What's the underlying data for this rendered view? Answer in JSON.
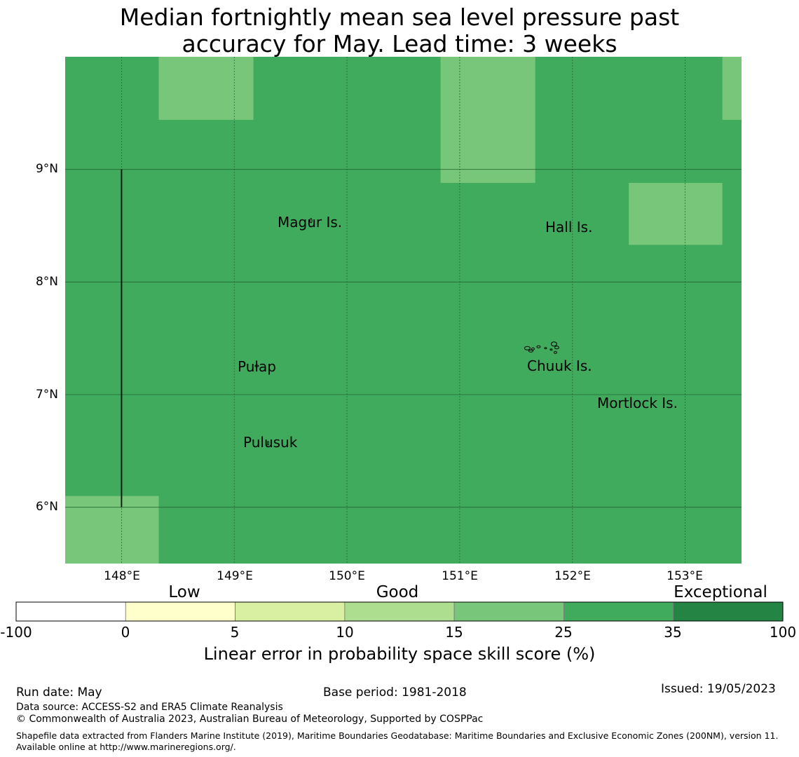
{
  "title_line1": "Median fortnightly mean sea level pressure past",
  "title_line2": "accuracy for May. Lead time: 3 weeks",
  "map": {
    "lon_range": [
      147.5,
      153.5
    ],
    "lat_range": [
      5.5,
      10.0
    ],
    "grid": true,
    "lon_ticks": [
      {
        "value": 148,
        "label": "148°E"
      },
      {
        "value": 149,
        "label": "149°E"
      },
      {
        "value": 150,
        "label": "150°E"
      },
      {
        "value": 151,
        "label": "151°E"
      },
      {
        "value": 152,
        "label": "152°E"
      },
      {
        "value": 153,
        "label": "153°E"
      }
    ],
    "lat_ticks": [
      {
        "value": 9,
        "label": "9°N"
      },
      {
        "value": 8,
        "label": "8°N"
      },
      {
        "value": 7,
        "label": "7°N"
      },
      {
        "value": 6,
        "label": "6°N"
      }
    ],
    "base_category": "25 to 35",
    "cells": [
      {
        "lon": [
          148.33,
          149.17
        ],
        "lat": [
          9.44,
          10.0
        ],
        "category": "15 to 25"
      },
      {
        "lon": [
          150.83,
          151.67
        ],
        "lat": [
          8.88,
          10.0
        ],
        "category": "15 to 25"
      },
      {
        "lon": [
          153.33,
          153.5
        ],
        "lat": [
          9.44,
          10.0
        ],
        "category": "15 to 25"
      },
      {
        "lon": [
          152.5,
          153.33
        ],
        "lat": [
          8.33,
          8.88
        ],
        "category": "15 to 25"
      },
      {
        "lon": [
          147.5,
          148.33
        ],
        "lat": [
          5.5,
          6.1
        ],
        "category": "15 to 25"
      }
    ],
    "boundary_line": {
      "lon": 148.0,
      "lat": [
        6.0,
        9.0
      ]
    },
    "places": [
      {
        "name": "Magur Is.",
        "lon": 149.68,
        "lat": 8.57
      },
      {
        "name": "Hall Is.",
        "lon": 151.96,
        "lat": 8.48
      },
      {
        "name": "Pulap",
        "lon": 149.2,
        "lat": 7.28
      },
      {
        "name": "Chuuk Is.",
        "lon": 151.85,
        "lat": 7.3
      },
      {
        "name": "Mortlock Is.",
        "lon": 152.58,
        "lat": 6.95
      },
      {
        "name": "Pulusuk",
        "lon": 149.3,
        "lat": 6.6
      }
    ]
  },
  "legend": {
    "categories": [
      "Low",
      "Good",
      "Exceptional"
    ],
    "bins": [
      {
        "from": -100,
        "to": 0,
        "color": "#ffffff"
      },
      {
        "from": 0,
        "to": 5,
        "color": "#ffffcc"
      },
      {
        "from": 5,
        "to": 10,
        "color": "#d9f0a3"
      },
      {
        "from": 10,
        "to": 15,
        "color": "#addd8e"
      },
      {
        "from": 15,
        "to": 25,
        "color": "#78c679"
      },
      {
        "from": 25,
        "to": 35,
        "color": "#41ab5d"
      },
      {
        "from": 35,
        "to": 100,
        "color": "#238443"
      }
    ],
    "ticks": [
      "-100",
      "0",
      "5",
      "10",
      "15",
      "25",
      "35",
      "100"
    ],
    "title": "Linear error in probability space skill score (%)"
  },
  "footer": {
    "run_date": "Run date: May",
    "base_period": "Base period: 1981-2018",
    "issued": "Issued: 19/05/2023",
    "data_source": "Data source: ACCESS-S2 and ERA5 Climate Reanalysis",
    "copyright": "© Commonwealth of Australia 2023, Australian Bureau of Meteorology, Supported by COSPPac",
    "shapefile_note": "Shapefile data extracted from Flanders Marine Institute (2019), Maritime Boundaries Geodatabase: Maritime Boundaries and Exclusive Economic Zones (200NM), version 11. Available online at http://www.marineregions.org/."
  }
}
